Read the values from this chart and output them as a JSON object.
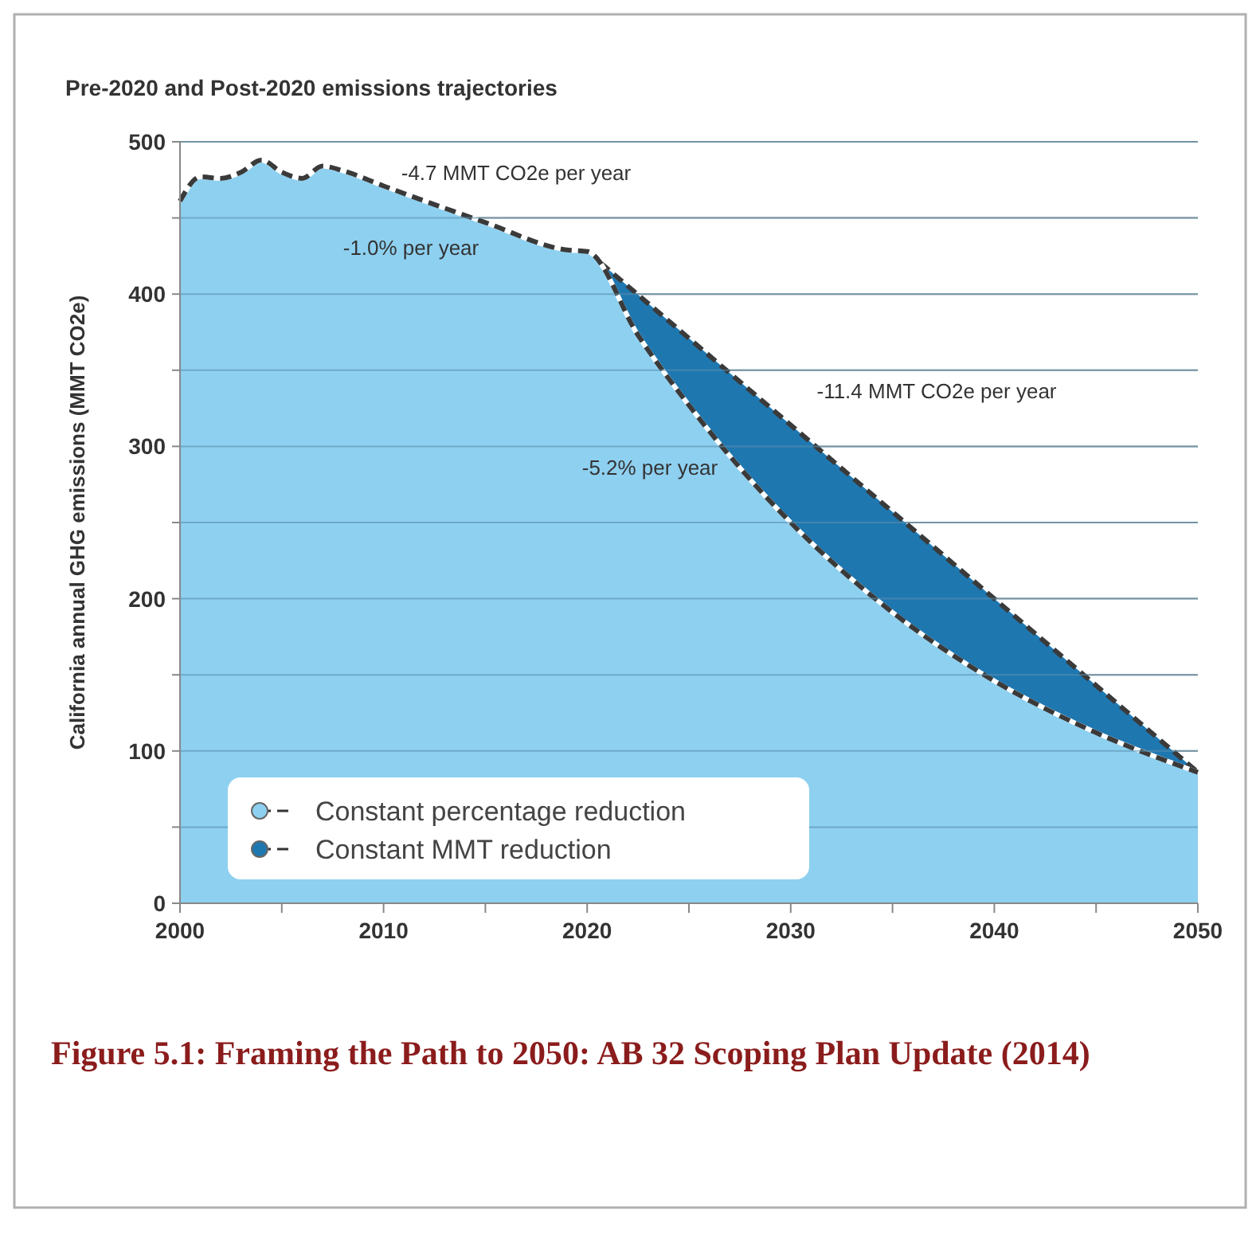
{
  "chart_data": {
    "type": "area",
    "title": "Pre-2020 and Post-2020 emissions trajectories",
    "ylabel": "California annual GHG emissions (MMT CO2e)",
    "xlim": [
      2000,
      2050
    ],
    "xticks": [
      2000,
      {
        "value": 2005,
        "label": null
      },
      2010,
      {
        "value": 2015,
        "label": null
      },
      2020,
      {
        "value": 2025,
        "label": null
      },
      2030,
      {
        "value": 2035,
        "label": null
      },
      2040,
      {
        "value": 2045,
        "label": null
      },
      2050
    ],
    "ylim": [
      0,
      500
    ],
    "yticks": [
      0,
      {
        "value": 50,
        "label": null
      },
      100,
      {
        "value": 150,
        "label": null
      },
      200,
      {
        "value": 250,
        "label": null
      },
      300,
      {
        "value": 350,
        "label": null
      },
      400,
      {
        "value": 450,
        "label": null
      },
      500
    ],
    "grid": "y",
    "legend": "bottom left",
    "line_style": "dashed",
    "series": [
      {
        "name": "Constant MMT reduction",
        "color": "#1f77b0",
        "x": [
          2020,
          2050
        ],
        "values": [
          428,
          86
        ]
      },
      {
        "name": "Constant percentage reduction",
        "color": "#8ed0f0",
        "x": [
          2000,
          2001,
          2002,
          2003,
          2004,
          2005,
          2006,
          2007,
          2008,
          2010,
          2015,
          2019,
          2020,
          2022.5,
          2025,
          2027.5,
          2030,
          2035,
          2040,
          2045,
          2050
        ],
        "values": [
          461,
          477,
          476,
          480,
          488,
          480,
          476,
          484,
          481,
          471,
          447,
          429,
          428,
          373,
          327,
          286,
          250,
          191,
          146,
          112,
          86
        ]
      }
    ],
    "annotations": [
      "-4.7 MMT CO2e per year",
      "-1.0% per year",
      "-11.4 MMT CO2e per year",
      "-5.2% per year",
      "Figure 5.1: Framing the Path to 2050: AB 32 Scoping Plan Update (2014)"
    ]
  }
}
